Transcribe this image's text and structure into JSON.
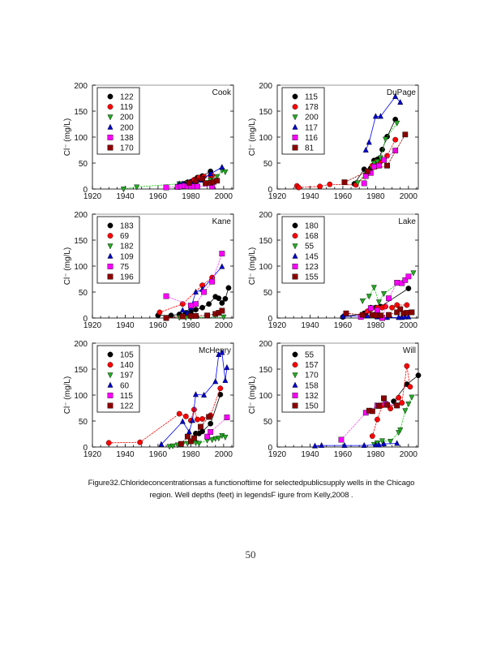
{
  "figure": {
    "caption_line1": "Figure32.Chlorideconcentrationsas a functionoftime for selectedpublicsupply wells in the Chicago",
    "caption_line2": "region. Well depths (feet) in legendsF igure from Kelly,2008 .",
    "page_number": "50"
  },
  "series_styles": [
    {
      "marker": "circle",
      "color": "#000000",
      "line": "#000000"
    },
    {
      "marker": "circle",
      "color": "#ff0000",
      "line": "#ff0000"
    },
    {
      "marker": "triangle-down",
      "color": "#22aa22",
      "line": "#22cc22"
    },
    {
      "marker": "triangle-up",
      "color": "#0000cc",
      "line": "#0000ff"
    },
    {
      "marker": "square",
      "color": "#ff00ff",
      "line": "#ff44ff"
    },
    {
      "marker": "square",
      "color": "#8b0000",
      "line": "#8b0000"
    }
  ],
  "chart_data": [
    {
      "type": "line",
      "title": "Cook",
      "xlabel": "",
      "ylabel": "Cl⁻ (mg/L)",
      "xlim": [
        1920,
        2006
      ],
      "ylim": [
        0,
        200
      ],
      "xticks": [
        1920,
        1940,
        1960,
        1980,
        2000
      ],
      "yticks": [
        0,
        50,
        100,
        150,
        200
      ],
      "legend": "top-left",
      "series": [
        {
          "name": "122",
          "x": [
            1973,
            1976,
            1978,
            1980,
            1984,
            1987,
            1992
          ],
          "y": [
            8,
            10,
            13,
            14,
            22,
            25,
            34
          ]
        },
        {
          "name": "119",
          "x": [
            1982,
            1985,
            1988,
            1992,
            1993
          ],
          "y": [
            18,
            22,
            24,
            26,
            26
          ]
        },
        {
          "name": "200",
          "x": [
            1939,
            1947,
            1973,
            1978,
            1983,
            1992,
            1996,
            1999,
            2001
          ],
          "y": [
            0,
            4,
            10,
            12,
            16,
            17,
            24,
            36,
            33
          ]
        },
        {
          "name": "200",
          "x": [
            1973,
            1975,
            1978,
            1980,
            1983,
            1986,
            1992,
            1999
          ],
          "y": [
            10,
            10,
            13,
            14,
            15,
            17,
            29,
            42
          ]
        },
        {
          "name": "138",
          "x": [
            1965,
            1972,
            1974,
            1976,
            1978,
            1980,
            1982,
            1984,
            1993
          ],
          "y": [
            3,
            4,
            5,
            6,
            5,
            5,
            5,
            5,
            5
          ]
        },
        {
          "name": "170",
          "x": [
            1979,
            1983,
            1987,
            1989,
            1992,
            1994,
            1996
          ],
          "y": [
            12,
            16,
            20,
            11,
            12,
            14,
            16
          ]
        }
      ]
    },
    {
      "type": "line",
      "title": "DuPage",
      "xlabel": "",
      "ylabel": "Cl⁻ (mg/L)",
      "xlim": [
        1920,
        2006
      ],
      "ylim": [
        0,
        200
      ],
      "xticks": [
        1920,
        1940,
        1960,
        1980,
        2000
      ],
      "yticks": [
        0,
        50,
        100,
        150,
        200
      ],
      "legend": "top-left",
      "series": [
        {
          "name": "115",
          "x": [
            1967,
            1973,
            1977,
            1979,
            1981,
            1982,
            1984,
            1987,
            1992
          ],
          "y": [
            10,
            38,
            40,
            55,
            57,
            58,
            76,
            101,
            134
          ]
        },
        {
          "name": "178",
          "x": [
            1932,
            1933,
            1946,
            1952,
            1968,
            1975,
            1978,
            1980,
            1983,
            1987,
            1992
          ],
          "y": [
            6,
            3,
            5,
            9,
            8,
            30,
            45,
            52,
            53,
            64,
            95
          ]
        },
        {
          "name": "200",
          "x": [
            1969,
            1974,
            1979,
            1981,
            1983,
            1986,
            1993
          ],
          "y": [
            12,
            30,
            50,
            53,
            60,
            96,
            127
          ]
        },
        {
          "name": "117",
          "x": [
            1974,
            1976,
            1980,
            1983,
            1992,
            1995
          ],
          "y": [
            75,
            90,
            140,
            140,
            178,
            167
          ]
        },
        {
          "name": "116",
          "x": [
            1973,
            1974,
            1977,
            1979,
            1982,
            1985,
            1992
          ],
          "y": [
            11,
            25,
            31,
            43,
            45,
            56,
            74
          ]
        },
        {
          "name": "81",
          "x": [
            1961,
            1975,
            1987,
            1998
          ],
          "y": [
            13,
            34,
            45,
            105
          ]
        }
      ]
    },
    {
      "type": "line",
      "title": "Kane",
      "xlabel": "",
      "ylabel": "Cl⁻ (mg/L)",
      "xlim": [
        1920,
        2006
      ],
      "ylim": [
        0,
        200
      ],
      "xticks": [
        1920,
        1940,
        1960,
        1980,
        2000
      ],
      "yticks": [
        0,
        50,
        100,
        150,
        200
      ],
      "legend": "top-left",
      "series": [
        {
          "name": "183",
          "x": [
            1960,
            1968,
            1973,
            1977,
            1980,
            1983,
            1987,
            1991,
            1995,
            1997,
            1999,
            2001,
            2003
          ],
          "y": [
            5,
            5,
            7,
            10,
            12,
            16,
            20,
            27,
            41,
            38,
            29,
            37,
            58
          ]
        },
        {
          "name": "69",
          "x": [
            1961,
            1975,
            1987,
            1993
          ],
          "y": [
            11,
            27,
            63,
            78
          ]
        },
        {
          "name": "182",
          "x": [
            1973,
            1977,
            1980,
            2000
          ],
          "y": [
            1,
            1,
            1,
            2
          ]
        },
        {
          "name": "109",
          "x": [
            1975,
            1978,
            1980,
            1983,
            1987,
            1999
          ],
          "y": [
            15,
            10,
            20,
            50,
            55,
            99
          ]
        },
        {
          "name": "75",
          "x": [
            1965,
            1980,
            1983,
            1988,
            1993,
            1999
          ],
          "y": [
            42,
            24,
            27,
            50,
            70,
            124
          ]
        },
        {
          "name": "196",
          "x": [
            1965,
            1975,
            1980,
            1983,
            1990,
            1995,
            1997,
            1999
          ],
          "y": [
            0,
            3,
            4,
            4,
            5,
            8,
            10,
            14
          ]
        }
      ]
    },
    {
      "type": "line",
      "title": "Lake",
      "xlabel": "",
      "ylabel": "Cl⁻ (mg/L)",
      "xlim": [
        1920,
        2006
      ],
      "ylim": [
        0,
        200
      ],
      "xticks": [
        1920,
        1940,
        1960,
        1980,
        2000
      ],
      "yticks": [
        0,
        50,
        100,
        150,
        200
      ],
      "legend": "top-left",
      "series": [
        {
          "name": "180",
          "x": [
            1960,
            1973,
            1977,
            1980,
            1983,
            2000
          ],
          "y": [
            2,
            9,
            20,
            20,
            22,
            57
          ]
        },
        {
          "name": "168",
          "x": [
            1975,
            1977,
            1981,
            1984,
            1986,
            1990,
            1993,
            1999
          ],
          "y": [
            13,
            17,
            20,
            20,
            22,
            20,
            25,
            25
          ]
        },
        {
          "name": "55",
          "x": [
            1972,
            1976,
            1979,
            1982,
            1985,
            2003
          ],
          "y": [
            33,
            42,
            59,
            31,
            47,
            87
          ]
        },
        {
          "name": "145",
          "x": [
            1960,
            1975,
            1981,
            1984,
            1987,
            1994,
            1996,
            1998,
            2000
          ],
          "y": [
            3,
            4,
            2,
            1,
            1,
            1,
            1,
            2,
            2
          ]
        },
        {
          "name": "123",
          "x": [
            1971,
            1977,
            1981,
            1984,
            1988,
            1993,
            1996,
            1998,
            2000
          ],
          "y": [
            2,
            19,
            15,
            0,
            38,
            68,
            67,
            73,
            80
          ]
        },
        {
          "name": "155",
          "x": [
            1962,
            1972,
            1978,
            1980,
            1983,
            1988,
            1993,
            1995,
            1997,
            1999,
            2002
          ],
          "y": [
            9,
            6,
            6,
            5,
            5,
            6,
            11,
            17,
            9,
            10,
            11
          ]
        }
      ]
    },
    {
      "type": "line",
      "title": "McHenry",
      "xlabel": "",
      "ylabel": "Cl⁻ (mg/L)",
      "xlim": [
        1920,
        2006
      ],
      "ylim": [
        0,
        200
      ],
      "xticks": [
        1920,
        1940,
        1960,
        1980,
        2000
      ],
      "yticks": [
        0,
        50,
        100,
        150,
        200
      ],
      "legend": "top-left",
      "series": [
        {
          "name": "105",
          "x": [
            1983,
            1985,
            1987,
            1992,
            1998
          ],
          "y": [
            26,
            26,
            30,
            45,
            101
          ]
        },
        {
          "name": "140",
          "x": [
            1930,
            1949,
            1973,
            1977,
            1980,
            1982,
            1984,
            1987,
            1992,
            1998
          ],
          "y": [
            8,
            9,
            64,
            59,
            51,
            72,
            53,
            54,
            61,
            113
          ]
        },
        {
          "name": "197",
          "x": [
            1967,
            1969,
            1972,
            1975,
            1978,
            1983,
            1985,
            1990,
            1993,
            1995,
            1997,
            1999,
            2001
          ],
          "y": [
            1,
            2,
            4,
            6,
            7,
            8,
            7,
            13,
            14,
            16,
            17,
            22,
            19
          ]
        },
        {
          "name": "60",
          "x": [
            1962,
            1975,
            1979,
            1981,
            1983,
            1988,
            1995,
            1997,
            1999,
            2001,
            2002
          ],
          "y": [
            5,
            49,
            29,
            51,
            101,
            100,
            126,
            178,
            182,
            128,
            153
          ]
        },
        {
          "name": "115",
          "x": [
            1990,
            1992,
            2002
          ],
          "y": [
            20,
            29,
            57
          ]
        },
        {
          "name": "122",
          "x": [
            1974,
            1978,
            1980,
            1982,
            1986,
            1991
          ],
          "y": [
            6,
            20,
            11,
            17,
            39,
            58
          ]
        }
      ]
    },
    {
      "type": "line",
      "title": "Will",
      "xlabel": "",
      "ylabel": "Cl⁻ (mg/L)",
      "xlim": [
        1920,
        2006
      ],
      "ylim": [
        0,
        200
      ],
      "xticks": [
        1920,
        1940,
        1960,
        1980,
        2000
      ],
      "yticks": [
        0,
        50,
        100,
        150,
        200
      ],
      "legend": "top-left",
      "series": [
        {
          "name": "55",
          "x": [
            1991,
            1999,
            2006
          ],
          "y": [
            88,
            121,
            138
          ]
        },
        {
          "name": "157",
          "x": [
            1978,
            1981,
            1984,
            1989,
            1994,
            1996,
            1999,
            2001
          ],
          "y": [
            21,
            53,
            80,
            74,
            95,
            85,
            156,
            116
          ]
        },
        {
          "name": "170",
          "x": [
            1979,
            1981,
            1984,
            1989,
            1994,
            1995,
            1998,
            2000,
            2002
          ],
          "y": [
            5,
            8,
            12,
            11,
            28,
            33,
            70,
            83,
            96
          ]
        },
        {
          "name": "158",
          "x": [
            1943,
            1947,
            1961,
            1973,
            1980,
            1982,
            1985,
            1993
          ],
          "y": [
            2,
            3,
            3,
            3,
            4,
            4,
            6,
            7
          ]
        },
        {
          "name": "132",
          "x": [
            1959,
            1974,
            1981,
            1986,
            1993
          ],
          "y": [
            14,
            66,
            80,
            83,
            80
          ]
        },
        {
          "name": "150",
          "x": [
            1976,
            1978,
            1982,
            1985,
            1987,
            1993
          ],
          "y": [
            70,
            69,
            79,
            94,
            81,
            80
          ]
        }
      ]
    }
  ]
}
